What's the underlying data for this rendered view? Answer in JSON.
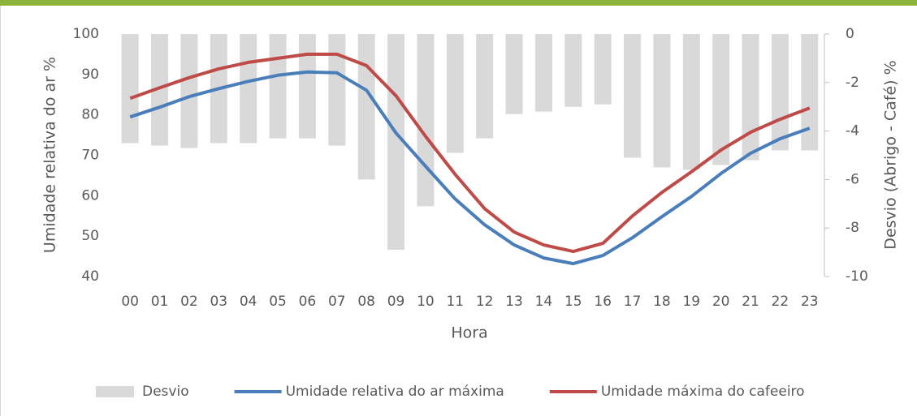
{
  "chart_data": {
    "type": "combo",
    "x_label": "Hora",
    "y_label": "Umidade relativa do ar %",
    "y2_label": "Desvio (Abrigo - Café) %",
    "categories": [
      "00",
      "01",
      "02",
      "03",
      "04",
      "05",
      "06",
      "07",
      "08",
      "09",
      "10",
      "11",
      "12",
      "13",
      "14",
      "15",
      "16",
      "17",
      "18",
      "19",
      "20",
      "21",
      "22",
      "23"
    ],
    "ylim": [
      40,
      100
    ],
    "yticks": [
      40,
      50,
      60,
      70,
      80,
      90,
      100
    ],
    "y2lim": [
      -10,
      0
    ],
    "y2ticks": [
      -10,
      -8,
      -6,
      -4,
      -2,
      0
    ],
    "legend": "bottom",
    "series": [
      {
        "name": "Desvio",
        "type": "bar",
        "axis": "y2",
        "color": "#d9d9d9",
        "values": [
          -4.5,
          -4.6,
          -4.7,
          -4.5,
          -4.5,
          -4.3,
          -4.3,
          -4.6,
          -6.0,
          -8.9,
          -7.1,
          -4.9,
          -4.3,
          -3.3,
          -3.2,
          -3.0,
          -2.9,
          -5.1,
          -5.5,
          -5.6,
          -5.4,
          -5.2,
          -4.8,
          -4.8
        ]
      },
      {
        "name": "Umidade relativa do ar máxima",
        "type": "line",
        "color": "#4a7ebb",
        "values": [
          79.5,
          81.9,
          84.5,
          86.5,
          88.3,
          89.8,
          90.6,
          90.4,
          86.1,
          75.5,
          67.3,
          59.2,
          52.8,
          47.8,
          44.6,
          43.2,
          45.2,
          49.6,
          54.8,
          59.8,
          65.5,
          70.5,
          74.1,
          76.7
        ]
      },
      {
        "name": "Umidade máxima do cafeeiro",
        "type": "line",
        "color": "#be4b48",
        "values": [
          84.1,
          86.7,
          89.2,
          91.4,
          93.0,
          94.0,
          95.0,
          95.0,
          92.2,
          84.7,
          74.7,
          65.3,
          56.8,
          51.0,
          47.8,
          46.2,
          48.2,
          55.0,
          60.8,
          65.9,
          71.3,
          75.7,
          78.9,
          81.7
        ]
      }
    ]
  }
}
